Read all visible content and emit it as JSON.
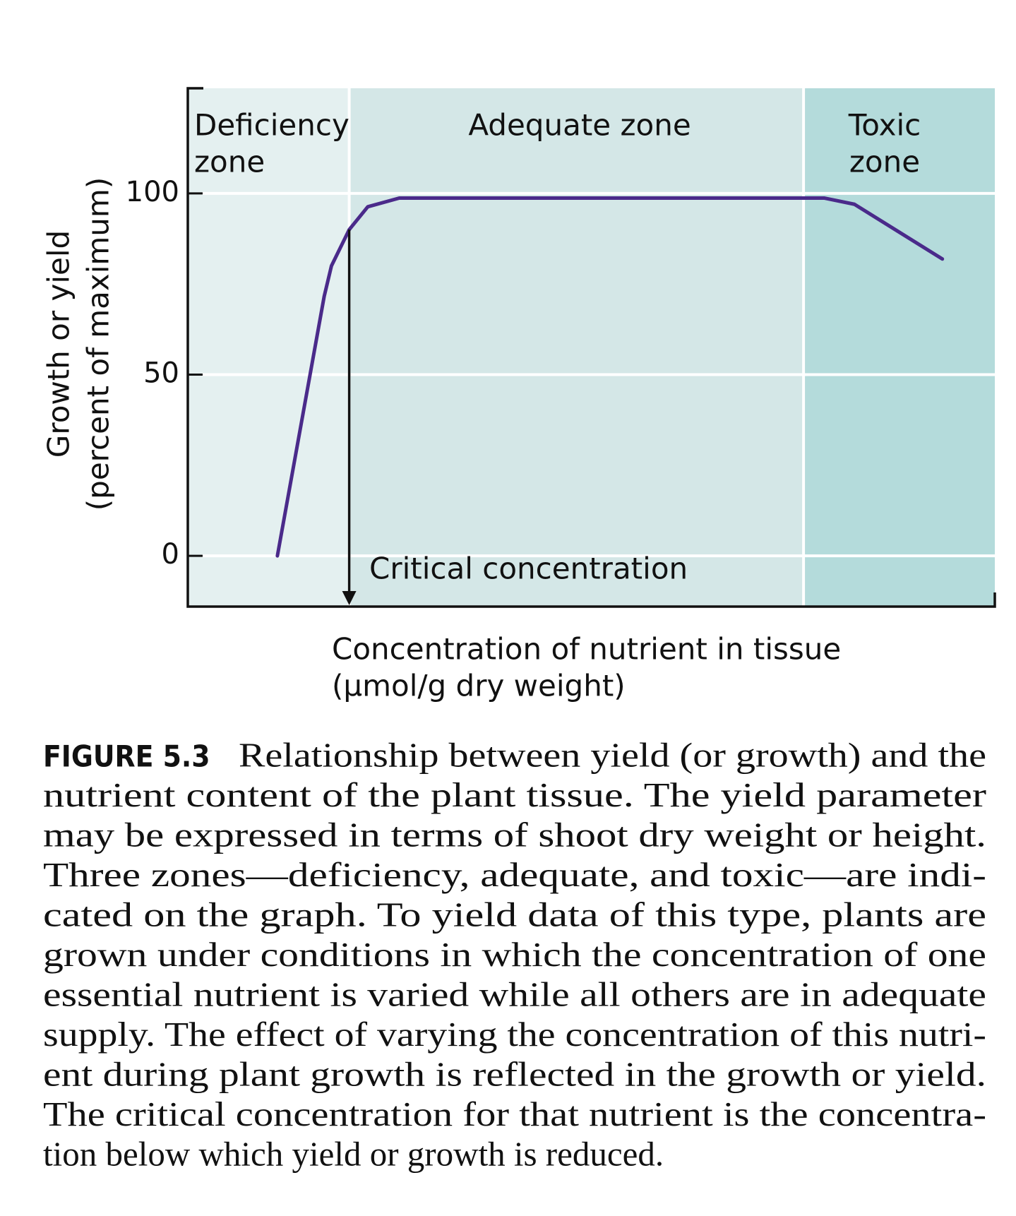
{
  "chart_data": {
    "type": "line",
    "ylabel": [
      "Growth or yield",
      "(percent of maximum)"
    ],
    "xlabel": [
      "Concentration of nutrient in tissue",
      "(µmol/g dry weight)"
    ],
    "xlim": [
      0,
      100
    ],
    "ylim": [
      -14,
      129
    ],
    "yticks": [
      0,
      50,
      100
    ],
    "grid": true,
    "zones": [
      {
        "label": [
          "Deficiency",
          "zone"
        ],
        "from": 0,
        "to": 20,
        "color": "#e4f0f0"
      },
      {
        "label": [
          "Adequate zone"
        ],
        "from": 20,
        "to": 76.3,
        "color": "#d4e7e7"
      },
      {
        "label": [
          "Toxic",
          "zone"
        ],
        "from": 76.3,
        "to": 100,
        "color": "#b4dbdb"
      }
    ],
    "series": [
      {
        "color": "#4a2a8a",
        "x": [
          11.1,
          16.9,
          17.8,
          20,
          22.3,
          26.2,
          78.9,
          82.6,
          93.5
        ],
        "values": [
          0,
          71.6,
          80,
          90,
          96.3,
          98.7,
          98.7,
          97,
          81.9
        ]
      }
    ],
    "annotation": {
      "text": "Critical concentration",
      "x": 20,
      "y": 90
    }
  },
  "caption": {
    "label": "FIGURE 5.3",
    "lines": [
      "Relationship between yield (or growth) and the",
      "nutrient content of the plant tissue. The yield parameter",
      "may be expressed in terms of shoot dry weight or height.",
      "Three zones—deficiency, adequate, and toxic—are indi-",
      "cated on the graph. To yield data of this type, plants are",
      "grown under conditions in which the concentration of one",
      "essential nutrient is varied while all others are in adequate",
      "supply. The effect of varying the concentration of this nutri-",
      "ent during plant growth is reflected in the growth or yield.",
      "The critical concentration for that nutrient is the concentra-",
      "tion below which yield or growth is reduced."
    ]
  }
}
